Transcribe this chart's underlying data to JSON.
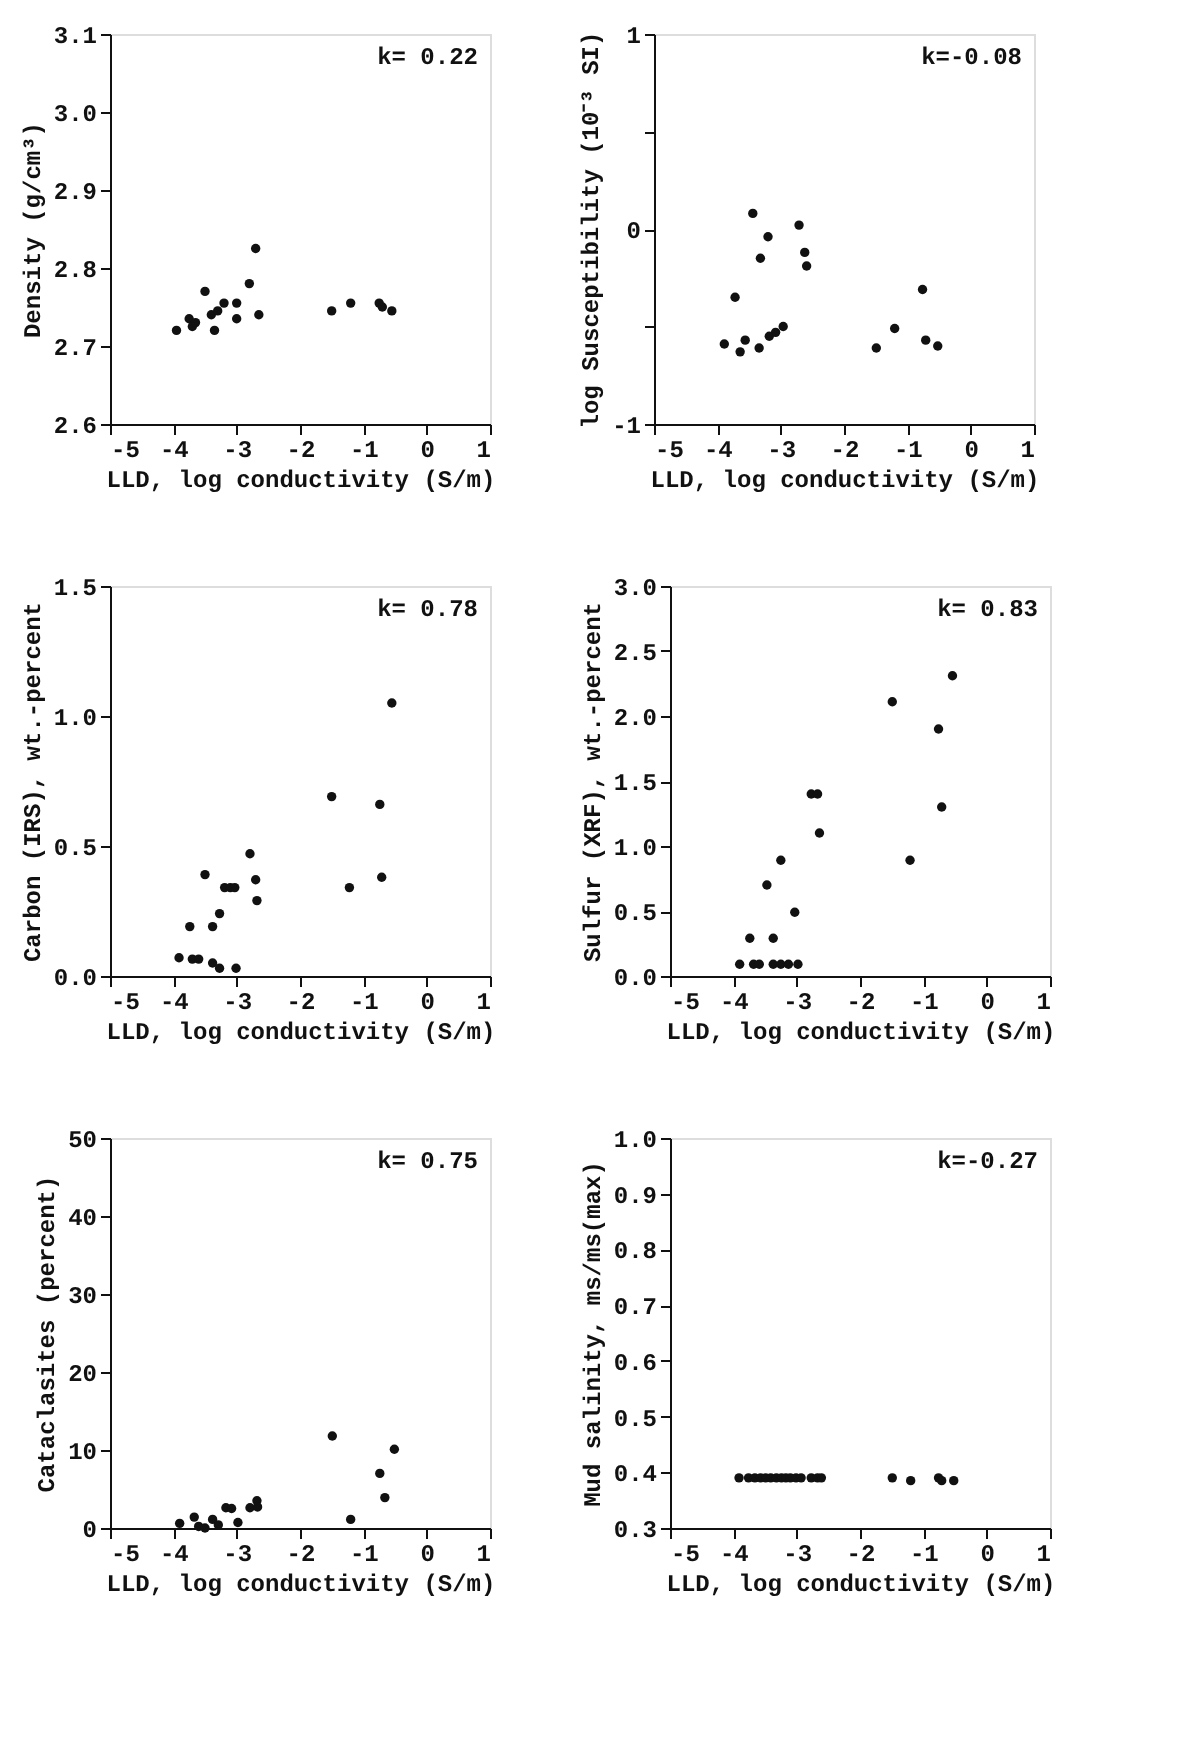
{
  "chart_data": [
    {
      "type": "scatter",
      "xlabel": "LLD, log conductivity (S/m)",
      "ylabel": "Density (g/cm³)",
      "annotations": [
        "k= 0.22"
      ],
      "xlim": [
        -5,
        1
      ],
      "xticks": [
        -5,
        -4,
        -3,
        -2,
        -1,
        0,
        1
      ],
      "ylim": [
        2.6,
        3.1
      ],
      "yticks": [
        {
          "value": 2.6,
          "label": "2.6"
        },
        {
          "value": 2.7,
          "label": "2.7"
        },
        {
          "value": 2.8,
          "label": "2.8"
        },
        {
          "value": 2.9,
          "label": "2.9"
        },
        {
          "value": 3.0,
          "label": "3.0"
        },
        {
          "value": 3.1,
          "label": "3.1"
        }
      ],
      "grid": false,
      "marker": "circle",
      "series": [
        {
          "color": "#111111",
          "x": [
            -3.95,
            -3.75,
            -3.7,
            -3.65,
            -3.5,
            -3.4,
            -3.35,
            -3.3,
            -3.2,
            -3.0,
            -3.0,
            -2.8,
            -2.7,
            -2.65,
            -1.5,
            -1.2,
            -0.75,
            -0.7,
            -0.55
          ],
          "values": [
            2.72,
            2.735,
            2.725,
            2.73,
            2.77,
            2.74,
            2.72,
            2.745,
            2.755,
            2.755,
            2.735,
            2.78,
            2.825,
            2.74,
            2.745,
            2.755,
            2.755,
            2.75,
            2.745
          ]
        }
      ]
    },
    {
      "type": "scatter",
      "xlabel": "LLD, log conductivity (S/m)",
      "ylabel": "log Susceptibility (10⁻³ SI)",
      "annotations": [
        "k=-0.08"
      ],
      "xlim": [
        -5,
        1
      ],
      "xticks": [
        -5,
        -4,
        -3,
        -2,
        -1,
        0,
        1
      ],
      "ylim": [
        -1,
        1
      ],
      "yticks": [
        -1,
        {
          "value": -0.5,
          "label": null
        },
        0,
        {
          "value": 0.5,
          "label": null
        },
        1
      ],
      "grid": false,
      "marker": "circle",
      "series": [
        {
          "color": "#111111",
          "x": [
            -3.89,
            -3.72,
            -3.64,
            -3.56,
            -3.44,
            -3.32,
            -3.34,
            -3.2,
            -3.18,
            -3.08,
            -2.96,
            -2.71,
            -2.62,
            -2.59,
            -1.49,
            -1.2,
            -0.76,
            -0.71,
            -0.52
          ],
          "values": [
            -0.59,
            -0.35,
            -0.63,
            -0.57,
            0.08,
            -0.15,
            -0.61,
            -0.04,
            -0.55,
            -0.53,
            -0.5,
            0.02,
            -0.12,
            -0.19,
            -0.61,
            -0.51,
            -0.31,
            -0.57,
            -0.6
          ]
        }
      ]
    },
    {
      "type": "scatter",
      "xlabel": "LLD, log conductivity (S/m)",
      "ylabel": "Carbon (IRS), wt.-percent",
      "annotations": [
        "k= 0.78"
      ],
      "xlim": [
        -5,
        1
      ],
      "xticks": [
        -5,
        -4,
        -3,
        -2,
        -1,
        0,
        1
      ],
      "ylim": [
        0,
        1.5
      ],
      "yticks": [
        {
          "value": 0,
          "label": "0.0"
        },
        {
          "value": 0.5,
          "label": "0.5"
        },
        {
          "value": 1.0,
          "label": "1.0"
        },
        {
          "value": 1.5,
          "label": "1.5"
        }
      ],
      "grid": false,
      "marker": "circle",
      "series": [
        {
          "color": "#111111",
          "x": [
            -3.91,
            -3.74,
            -3.7,
            -3.6,
            -3.5,
            -3.38,
            -3.38,
            -3.27,
            -3.27,
            -3.19,
            -3.1,
            -3.03,
            -3.01,
            -2.79,
            -2.7,
            -2.68,
            -1.5,
            -1.22,
            -0.74,
            -0.71,
            -0.55
          ],
          "values": [
            0.07,
            0.19,
            0.065,
            0.065,
            0.39,
            0.19,
            0.05,
            0.24,
            0.03,
            0.34,
            0.34,
            0.34,
            0.03,
            0.47,
            0.37,
            0.29,
            0.69,
            0.34,
            0.66,
            0.38,
            1.05
          ]
        }
      ]
    },
    {
      "type": "scatter",
      "xlabel": "LLD, log conductivity (S/m)",
      "ylabel": "Sulfur (XRF), wt.-percent",
      "annotations": [
        "k= 0.83"
      ],
      "xlim": [
        -5,
        1
      ],
      "xticks": [
        -5,
        -4,
        -3,
        -2,
        -1,
        0,
        1
      ],
      "ylim": [
        0,
        3
      ],
      "yticks": [
        {
          "value": 0,
          "label": "0.0"
        },
        {
          "value": 0.5,
          "label": "0.5"
        },
        {
          "value": 1.0,
          "label": "1.0"
        },
        {
          "value": 1.5,
          "label": "1.5"
        },
        {
          "value": 2.0,
          "label": "2.0"
        },
        {
          "value": 2.5,
          "label": "2.5"
        },
        {
          "value": 3.0,
          "label": "3.0"
        }
      ],
      "grid": false,
      "marker": "circle",
      "series": [
        {
          "color": "#111111",
          "x": [
            -3.9,
            -3.74,
            -3.68,
            -3.59,
            -3.47,
            -3.37,
            -3.37,
            -3.25,
            -3.25,
            -3.13,
            -3.03,
            -2.98,
            -2.77,
            -2.67,
            -2.64,
            -1.49,
            -1.21,
            -0.76,
            -0.71,
            -0.54
          ],
          "values": [
            0.09,
            0.29,
            0.09,
            0.09,
            0.7,
            0.29,
            0.09,
            0.89,
            0.09,
            0.09,
            0.49,
            0.09,
            1.4,
            1.4,
            1.1,
            2.11,
            0.89,
            1.9,
            1.3,
            2.31
          ]
        }
      ]
    },
    {
      "type": "scatter",
      "xlabel": "LLD, log conductivity (S/m)",
      "ylabel": "Cataclasites (percent)",
      "annotations": [
        "k= 0.75"
      ],
      "xlim": [
        -5,
        1
      ],
      "xticks": [
        -5,
        -4,
        -3,
        -2,
        -1,
        0,
        1
      ],
      "ylim": [
        0,
        50
      ],
      "yticks": [
        0,
        10,
        20,
        30,
        40,
        50
      ],
      "grid": false,
      "marker": "circle",
      "series": [
        {
          "color": "#111111",
          "x": [
            -3.9,
            -3.67,
            -3.6,
            -3.5,
            -3.38,
            -3.29,
            -3.17,
            -3.08,
            -2.98,
            -2.79,
            -2.68,
            -2.67,
            -1.49,
            -1.2,
            -0.74,
            -0.71,
            -0.66,
            -0.51
          ],
          "values": [
            0.6,
            1.4,
            0.2,
            0,
            1.1,
            0.4,
            2.6,
            2.5,
            0.7,
            2.6,
            3.5,
            2.7,
            11.8,
            1.1,
            7.0,
            null,
            3.9,
            10.1
          ]
        }
      ]
    },
    {
      "type": "scatter",
      "xlabel": "LLD, log conductivity (S/m)",
      "ylabel": "Mud salinity, ms/ms(max)",
      "annotations": [
        "k=-0.27"
      ],
      "xlim": [
        -5,
        1
      ],
      "xticks": [
        -5,
        -4,
        -3,
        -2,
        -1,
        0,
        1
      ],
      "ylim": [
        0.3,
        1.0
      ],
      "yticks": [
        0.3,
        0.4,
        0.5,
        0.6,
        0.7,
        0.8,
        0.9,
        {
          "value": 1.0,
          "label": "1.0"
        }
      ],
      "grid": false,
      "marker": "circle",
      "series": [
        {
          "color": "#111111",
          "x": [
            -3.91,
            -3.76,
            -3.66,
            -3.57,
            -3.49,
            -3.41,
            -3.32,
            -3.24,
            -3.17,
            -3.1,
            -3.01,
            -2.93,
            -2.77,
            -2.67,
            -2.61,
            -1.49,
            -1.2,
            -0.76,
            -0.71,
            -0.52
          ],
          "values": [
            0.39,
            0.39,
            0.39,
            0.39,
            0.39,
            0.39,
            0.39,
            0.39,
            0.39,
            0.39,
            0.39,
            0.39,
            0.39,
            0.39,
            0.39,
            0.39,
            0.385,
            0.39,
            0.385,
            0.385
          ]
        }
      ]
    }
  ]
}
